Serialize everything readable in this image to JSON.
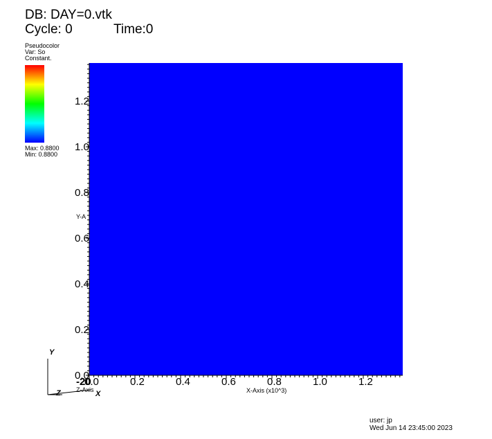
{
  "header": {
    "db_label": "DB: DAY=0.vtk",
    "cycle_label": "Cycle: 0",
    "time_label": "Time:0"
  },
  "legend": {
    "plot_type": "Pseudocolor",
    "var_label": "Var: So",
    "mode": "Constant.",
    "max_label": "Max:  0.8800",
    "min_label": "Min:  0.8800",
    "colors": [
      "#ff0000",
      "#ffff00",
      "#00ff00",
      "#00ffff",
      "#0000ff"
    ]
  },
  "plot": {
    "fill_color": "#0000ff",
    "x_axis_label": "X-Axis (x10^3)",
    "y_axis_label": "Y-A",
    "z_axis_label": "Z-Axis",
    "x_tick_labels": [
      "0.0",
      "0.2",
      "0.4",
      "0.6",
      "0.8",
      "1.0",
      "1.2"
    ],
    "y_tick_labels": [
      "0.0",
      "0.2",
      "0.4",
      "0.6",
      "0.8",
      "1.0",
      "1.2"
    ],
    "z_tick_label": "-20"
  },
  "triad": {
    "y": "Y",
    "z": "Z",
    "x": "X"
  },
  "footer": {
    "user": "user: jp",
    "date": "Wed Jun 14 23:45:00 2023"
  }
}
